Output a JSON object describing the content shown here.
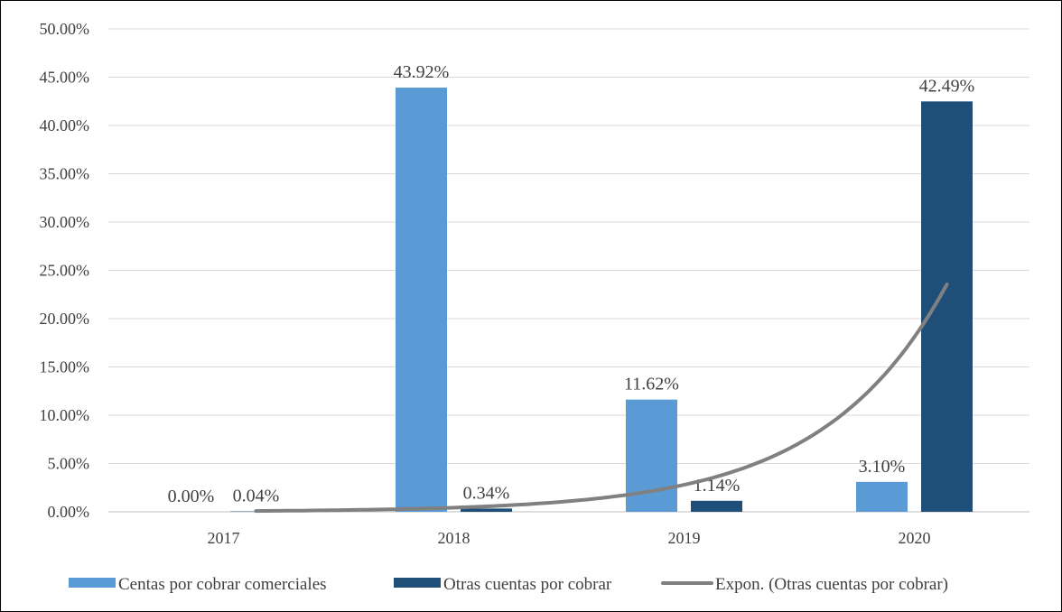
{
  "chart_data": {
    "type": "bar",
    "categories": [
      "2017",
      "2018",
      "2019",
      "2020"
    ],
    "series": [
      {
        "name": "Centas por cobrar comerciales",
        "color": "#5b9bd5",
        "values": [
          0.0,
          43.92,
          11.62,
          3.1
        ],
        "labels": [
          "0.00%",
          "43.92%",
          "11.62%",
          "3.10%"
        ]
      },
      {
        "name": "Otras cuentas por cobrar",
        "color": "#1f4e79",
        "values": [
          0.04,
          0.34,
          1.14,
          42.49
        ],
        "labels": [
          "0.04%",
          "0.34%",
          "1.14%",
          "42.49%"
        ]
      }
    ],
    "trendline": {
      "name": "Expon. (Otras cuentas por cobrar)",
      "type": "exponential",
      "of_series": "Otras cuentas por cobrar",
      "color": "#808080",
      "values": [
        0.09,
        0.55,
        3.4,
        24.8
      ]
    },
    "ylim": [
      0,
      50
    ],
    "yticks": [
      0,
      5,
      10,
      15,
      20,
      25,
      30,
      35,
      40,
      45,
      50
    ],
    "ytick_labels": [
      "0.00%",
      "5.00%",
      "10.00%",
      "15.00%",
      "20.00%",
      "25.00%",
      "30.00%",
      "35.00%",
      "40.00%",
      "45.00%",
      "50.00%"
    ],
    "grid": true,
    "legend_position": "bottom",
    "title": "",
    "xlabel": "",
    "ylabel": ""
  }
}
